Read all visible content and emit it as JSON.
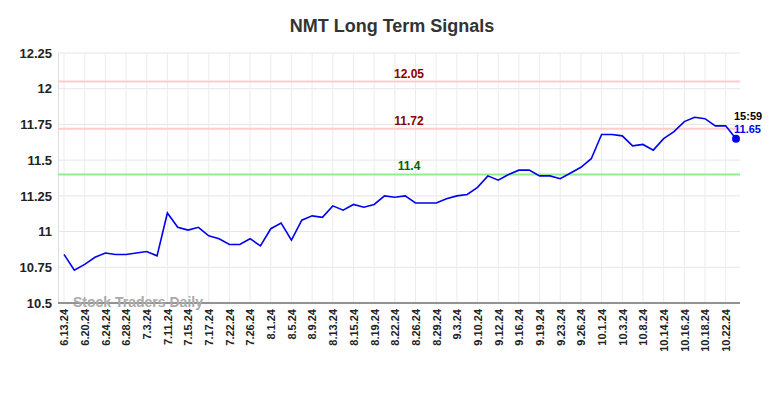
{
  "chart_data": {
    "type": "line",
    "title": "NMT Long Term Signals",
    "watermark": "Stock Traders Daily",
    "annotation": "15:59",
    "categories": [
      "6.13.24",
      null,
      "6.20.24",
      null,
      "6.24.24",
      null,
      "6.28.24",
      null,
      "7.3.24",
      null,
      "7.11.24",
      null,
      "7.15.24",
      null,
      "7.17.24",
      null,
      "7.22.24",
      null,
      "7.26.24",
      null,
      "8.1.24",
      null,
      "8.5.24",
      null,
      "8.9.24",
      null,
      "8.13.24",
      null,
      "8.15.24",
      null,
      "8.19.24",
      null,
      "8.22.24",
      null,
      "8.26.24",
      null,
      "8.29.24",
      null,
      "9.3.24",
      null,
      "9.10.24",
      null,
      "9.12.24",
      null,
      "9.16.24",
      null,
      "9.19.24",
      null,
      "9.23.24",
      null,
      "9.26.24",
      null,
      "10.1.24",
      null,
      "10.3.24",
      null,
      "10.8.24",
      null,
      "10.14.24",
      null,
      "10.16.24",
      null,
      "10.18.24",
      null,
      "10.22.24",
      null
    ],
    "values": [
      10.84,
      10.73,
      10.77,
      10.82,
      10.85,
      10.84,
      10.84,
      10.85,
      10.86,
      10.83,
      11.13,
      11.03,
      11.01,
      11.03,
      10.97,
      10.95,
      10.91,
      10.91,
      10.95,
      10.9,
      11.02,
      11.06,
      10.94,
      11.08,
      11.11,
      11.1,
      11.18,
      11.15,
      11.19,
      11.17,
      11.19,
      11.25,
      11.24,
      11.25,
      11.2,
      11.2,
      11.2,
      11.23,
      11.25,
      11.26,
      11.31,
      11.39,
      11.36,
      11.4,
      11.43,
      11.43,
      11.39,
      11.39,
      11.37,
      11.41,
      11.45,
      11.51,
      11.68,
      11.68,
      11.67,
      11.6,
      11.61,
      11.57,
      11.65,
      11.7,
      11.77,
      11.8,
      11.79,
      11.74,
      11.74,
      11.65
    ],
    "color": "#0000ee",
    "ylim": [
      10.5,
      12.25
    ],
    "yticks": [
      10.5,
      10.75,
      11,
      11.25,
      11.5,
      11.75,
      12,
      12.25
    ],
    "grid": true,
    "reference_lines": [
      {
        "value": 12.05,
        "color": "#ffcccc",
        "text_color": "#8b0000"
      },
      {
        "value": 11.72,
        "color": "#ffcccc",
        "text_color": "#8b0000"
      },
      {
        "value": 11.4,
        "color": "#90ee90",
        "text_color": "#006400"
      }
    ]
  }
}
